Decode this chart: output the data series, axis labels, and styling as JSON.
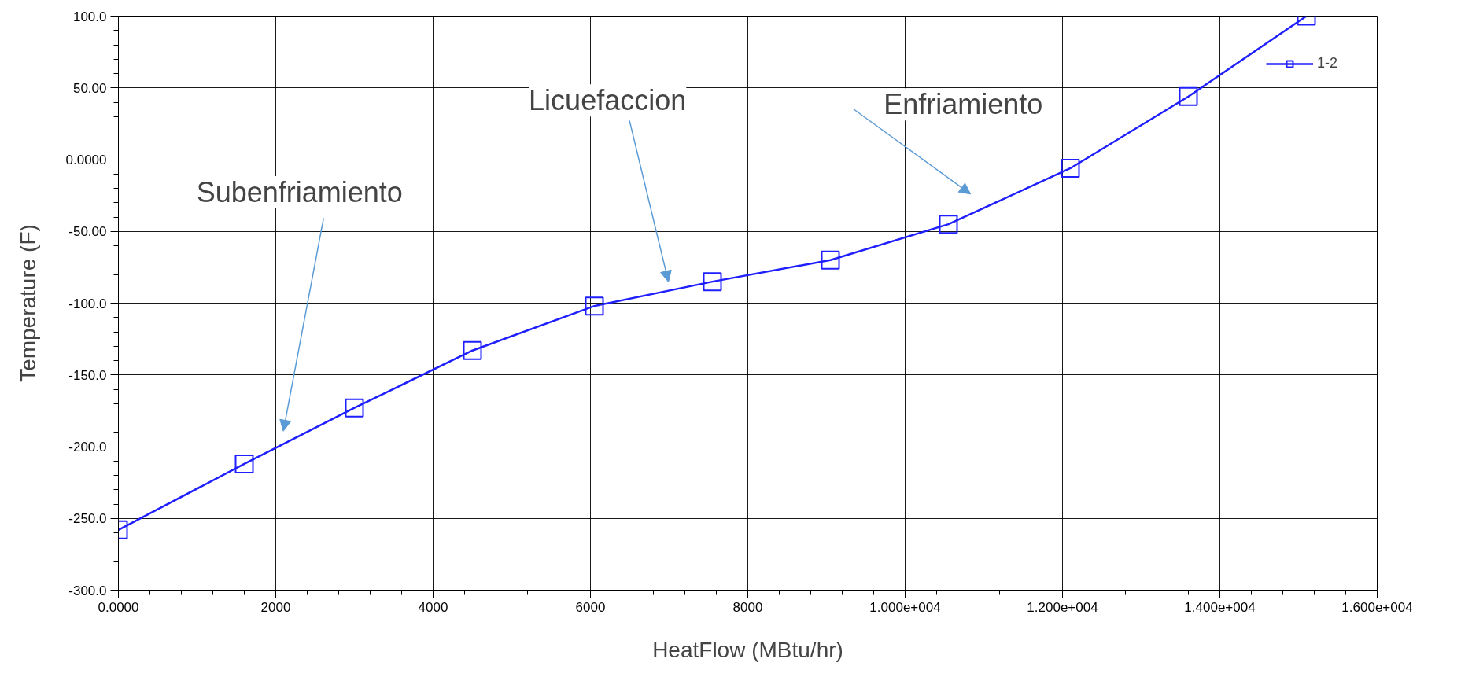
{
  "chart_data": {
    "type": "line",
    "xlabel": "HeatFlow (MBtu/hr)",
    "ylabel": "Temperature (F)",
    "x": [
      0,
      1600,
      3000,
      4500,
      6050,
      7550,
      9050,
      10550,
      12100,
      13600,
      15100
    ],
    "series": [
      {
        "name": "1-2",
        "color": "#1f1fff",
        "values": [
          -258,
          -212,
          -173,
          -133,
          -102,
          -85,
          -70,
          -45,
          -6,
          44,
          100
        ]
      }
    ],
    "xlim": [
      0,
      16000
    ],
    "ylim": [
      -300,
      100
    ],
    "xticks": [
      {
        "value": 0,
        "label": "0.0000"
      },
      2000,
      4000,
      6000,
      8000,
      {
        "value": 10000,
        "label": "1.000e+004"
      },
      {
        "value": 12000,
        "label": "1.200e+004"
      },
      {
        "value": 14000,
        "label": "1.400e+004"
      },
      {
        "value": 16000,
        "label": "1.600e+004"
      }
    ],
    "yticks": [
      {
        "value": 100,
        "label": "100.0"
      },
      {
        "value": 50,
        "label": "50.00"
      },
      {
        "value": 0,
        "label": "0.0000"
      },
      {
        "value": -50,
        "label": "-50.00"
      },
      {
        "value": -100,
        "label": "-100.0"
      },
      {
        "value": -150,
        "label": "-150.0"
      },
      {
        "value": -200,
        "label": "-200.0"
      },
      {
        "value": -250,
        "label": "-250.0"
      },
      {
        "value": -300,
        "label": "-300.0"
      }
    ],
    "annotations": [
      "Subenfriamiento",
      "Licuefaccion",
      "Enfriamiento"
    ],
    "grid": true,
    "legend": "top right",
    "marker": "square",
    "line_style": "solid"
  }
}
